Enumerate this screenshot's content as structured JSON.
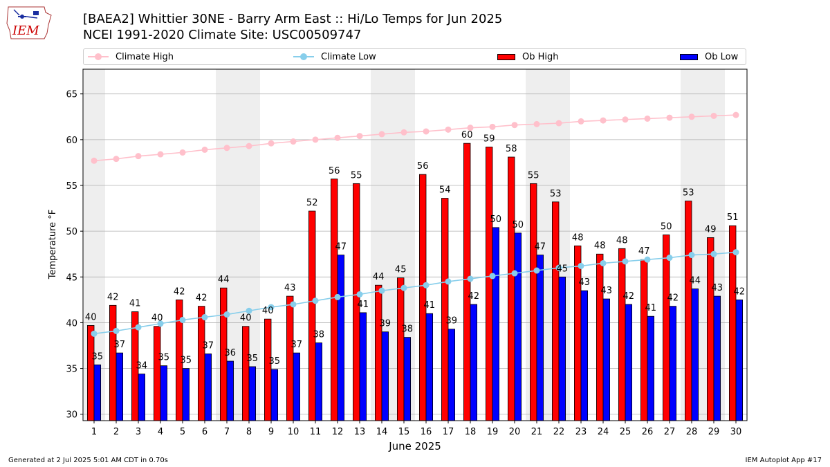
{
  "header": {
    "logo_text": "IEM",
    "title": "[BAEA2] Whittier 30NE - Barry Arm East :: Hi/Lo Temps for Jun 2025",
    "subtitle": "NCEI 1991-2020 Climate Site: USC00509747"
  },
  "legend": {
    "climate_high": "Climate High",
    "climate_low": "Climate Low",
    "ob_high": "Ob High",
    "ob_low": "Ob Low",
    "placement": "top"
  },
  "colors": {
    "ob_high": "#ff0000",
    "ob_low": "#0000ff",
    "climate_high": "#ffc0cb",
    "climate_low": "#87ceeb",
    "weekend_band": "#eeeeee",
    "grid": "#b0b0b0"
  },
  "footer": {
    "left": "Generated at 2 Jul 2025 5:01 AM CDT in 0.70s",
    "right": "IEM Autoplot App #17"
  },
  "chart_data": {
    "type": "bar",
    "title": "[BAEA2] Whittier 30NE - Barry Arm East :: Hi/Lo Temps for Jun 2025",
    "subtitle": "NCEI 1991-2020 Climate Site: USC00509747",
    "xlabel": "June 2025",
    "ylabel": "Temperature °F",
    "ylim": [
      29.3,
      67.7
    ],
    "yticks": [
      30,
      35,
      40,
      45,
      50,
      55,
      60,
      65
    ],
    "grid": true,
    "categories": [
      "1",
      "2",
      "3",
      "4",
      "5",
      "6",
      "7",
      "8",
      "9",
      "10",
      "11",
      "12",
      "13",
      "14",
      "15",
      "16",
      "17",
      "18",
      "19",
      "20",
      "21",
      "22",
      "23",
      "24",
      "25",
      "26",
      "27",
      "28",
      "29",
      "30"
    ],
    "shaded_days": [
      1,
      7,
      8,
      14,
      15,
      21,
      22,
      28,
      29
    ],
    "series": [
      {
        "name": "Ob High",
        "kind": "bar",
        "values": [
          39.7,
          41.9,
          41.2,
          39.6,
          42.5,
          41.8,
          43.8,
          39.6,
          40.4,
          42.9,
          52.2,
          55.7,
          55.2,
          44.1,
          44.9,
          56.2,
          53.6,
          59.6,
          59.2,
          58.1,
          55.2,
          53.2,
          48.4,
          47.5,
          48.1,
          46.9,
          49.6,
          53.3,
          49.3,
          50.6
        ],
        "labels": [
          "40",
          "42",
          "41",
          "40",
          "42",
          "42",
          "44",
          "40",
          "40",
          "43",
          "52",
          "56",
          "55",
          "44",
          "45",
          "56",
          "54",
          "60",
          "59",
          "58",
          "55",
          "53",
          "48",
          "48",
          "48",
          "47",
          "50",
          "53",
          "49",
          "51"
        ]
      },
      {
        "name": "Ob Low",
        "kind": "bar",
        "values": [
          35.4,
          36.7,
          34.4,
          35.3,
          35.0,
          36.6,
          35.8,
          35.2,
          34.9,
          36.7,
          37.8,
          47.4,
          41.1,
          39.0,
          38.4,
          41.0,
          39.3,
          42.0,
          50.4,
          49.8,
          47.4,
          45.0,
          43.5,
          42.6,
          42.0,
          40.7,
          41.8,
          43.7,
          42.9,
          42.5
        ],
        "labels": [
          "35",
          "37",
          "34",
          "35",
          "35",
          "37",
          "36",
          "35",
          "35",
          "37",
          "38",
          "47",
          "41",
          "39",
          "38",
          "41",
          "39",
          "42",
          "50",
          "50",
          "47",
          "45",
          "43",
          "43",
          "42",
          "41",
          "42",
          "44",
          "43",
          "42"
        ]
      },
      {
        "name": "Climate High",
        "kind": "line",
        "values": [
          57.7,
          57.9,
          58.2,
          58.4,
          58.6,
          58.9,
          59.1,
          59.3,
          59.6,
          59.8,
          60.0,
          60.2,
          60.4,
          60.6,
          60.8,
          60.9,
          61.1,
          61.3,
          61.4,
          61.6,
          61.7,
          61.8,
          62.0,
          62.1,
          62.2,
          62.3,
          62.4,
          62.5,
          62.6,
          62.7
        ]
      },
      {
        "name": "Climate Low",
        "kind": "line",
        "values": [
          38.8,
          39.1,
          39.5,
          39.9,
          40.3,
          40.6,
          40.9,
          41.3,
          41.7,
          42.0,
          42.4,
          42.8,
          43.1,
          43.5,
          43.8,
          44.1,
          44.5,
          44.8,
          45.1,
          45.4,
          45.7,
          46.0,
          46.2,
          46.5,
          46.7,
          46.9,
          47.1,
          47.4,
          47.5,
          47.7
        ]
      }
    ]
  }
}
